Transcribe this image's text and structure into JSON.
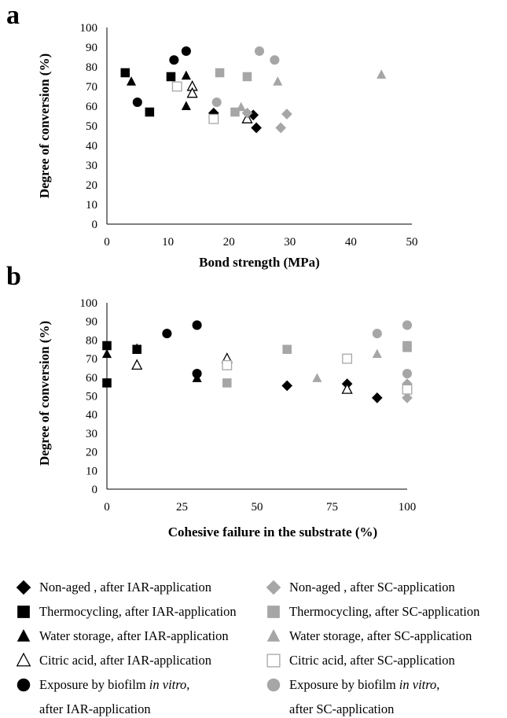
{
  "chart_data": [
    {
      "type": "scatter",
      "panel_label": "a",
      "xlabel": "Bond strength (MPa)",
      "ylabel": "Degree of conversion (%)",
      "xlim": [
        0,
        50
      ],
      "ylim": [
        0,
        100
      ],
      "xticks": [
        "0",
        "10",
        "20",
        "30",
        "40",
        "50"
      ],
      "yticks": [
        "0",
        "10",
        "20",
        "30",
        "40",
        "50",
        "60",
        "70",
        "80",
        "90",
        "100"
      ],
      "grid": false,
      "series": [
        {
          "key": "nonaged_iar",
          "points": [
            [
              17.5,
              56.5
            ],
            [
              24,
              55.5
            ],
            [
              24.5,
              49
            ]
          ]
        },
        {
          "key": "thermo_iar",
          "points": [
            [
              3,
              77
            ],
            [
              7,
              57
            ],
            [
              10.5,
              75
            ]
          ]
        },
        {
          "key": "water_iar",
          "points": [
            [
              4,
              72.5
            ],
            [
              13,
              75.5
            ],
            [
              13,
              60
            ]
          ]
        },
        {
          "key": "citric_iar",
          "points": [
            [
              14,
              70
            ],
            [
              14,
              66.5
            ],
            [
              23,
              53.5
            ]
          ]
        },
        {
          "key": "biofilm_iar",
          "points": [
            [
              5,
              62
            ],
            [
              11,
              83.5
            ],
            [
              13,
              88
            ]
          ]
        },
        {
          "key": "nonaged_sc",
          "points": [
            [
              23,
              56.5
            ],
            [
              28.5,
              49
            ],
            [
              29.5,
              56
            ]
          ]
        },
        {
          "key": "thermo_sc",
          "points": [
            [
              18.5,
              77
            ],
            [
              21,
              57
            ],
            [
              23,
              75
            ]
          ]
        },
        {
          "key": "water_sc",
          "points": [
            [
              22,
              59.5
            ],
            [
              28,
              72.5
            ],
            [
              45,
              76
            ]
          ]
        },
        {
          "key": "citric_sc",
          "points": [
            [
              11.5,
              70
            ],
            [
              17.5,
              53.5
            ]
          ]
        },
        {
          "key": "biofilm_sc",
          "points": [
            [
              18,
              62
            ],
            [
              25,
              88
            ],
            [
              27.5,
              83.5
            ]
          ]
        }
      ]
    },
    {
      "type": "scatter",
      "panel_label": "b",
      "xlabel": "Cohesive failure in the substrate (%)",
      "ylabel": "Degree of conversion (%)",
      "xlim": [
        0,
        100
      ],
      "ylim": [
        0,
        100
      ],
      "xticks": [
        "0",
        "25",
        "50",
        "75",
        "100"
      ],
      "yticks": [
        "0",
        "10",
        "20",
        "30",
        "40",
        "50",
        "60",
        "70",
        "80",
        "90",
        "100"
      ],
      "grid": false,
      "series": [
        {
          "key": "nonaged_iar",
          "points": [
            [
              60,
              55.5
            ],
            [
              80,
              56.5
            ],
            [
              90,
              49
            ]
          ]
        },
        {
          "key": "thermo_iar",
          "points": [
            [
              0,
              77
            ],
            [
              0,
              57
            ],
            [
              10,
              75
            ]
          ]
        },
        {
          "key": "water_iar",
          "points": [
            [
              0,
              72.5
            ],
            [
              10,
              75.5
            ],
            [
              30,
              59.5
            ]
          ]
        },
        {
          "key": "citric_iar",
          "points": [
            [
              10,
              66.5
            ],
            [
              40,
              70
            ],
            [
              80,
              53.5
            ]
          ]
        },
        {
          "key": "biofilm_iar",
          "points": [
            [
              20,
              83.5
            ],
            [
              30,
              88
            ],
            [
              30,
              62
            ]
          ]
        },
        {
          "key": "nonaged_sc",
          "points": [
            [
              100,
              56.5
            ],
            [
              100,
              49
            ]
          ]
        },
        {
          "key": "thermo_sc",
          "points": [
            [
              40,
              57
            ],
            [
              60,
              75
            ],
            [
              100,
              77
            ],
            [
              100,
              76
            ]
          ]
        },
        {
          "key": "water_sc",
          "points": [
            [
              70,
              59.5
            ],
            [
              90,
              72.5
            ]
          ]
        },
        {
          "key": "citric_sc",
          "points": [
            [
              40,
              66.5
            ],
            [
              80,
              70
            ],
            [
              100,
              53.5
            ]
          ]
        },
        {
          "key": "biofilm_sc",
          "points": [
            [
              90,
              83.5
            ],
            [
              100,
              88
            ],
            [
              100,
              62
            ]
          ]
        }
      ]
    }
  ],
  "series_styles": {
    "nonaged_iar": {
      "shape": "diamond",
      "color": "#000000",
      "filled": true
    },
    "thermo_iar": {
      "shape": "square",
      "color": "#000000",
      "filled": true
    },
    "water_iar": {
      "shape": "triangle",
      "color": "#000000",
      "filled": true
    },
    "citric_iar": {
      "shape": "triangle",
      "color": "#000000",
      "filled": false
    },
    "biofilm_iar": {
      "shape": "circle",
      "color": "#000000",
      "filled": true
    },
    "nonaged_sc": {
      "shape": "diamond",
      "color": "#a6a6a6",
      "filled": true
    },
    "thermo_sc": {
      "shape": "square",
      "color": "#a6a6a6",
      "filled": true
    },
    "water_sc": {
      "shape": "triangle",
      "color": "#a6a6a6",
      "filled": true
    },
    "citric_sc": {
      "shape": "square",
      "color": "#a6a6a6",
      "filled": false
    },
    "biofilm_sc": {
      "shape": "circle",
      "color": "#a6a6a6",
      "filled": true
    }
  },
  "legend": {
    "items": [
      {
        "key": "nonaged_iar",
        "text": "Non-aged , after IAR-application"
      },
      {
        "key": "nonaged_sc",
        "text": "Non-aged , after SC-application"
      },
      {
        "key": "thermo_iar",
        "text": "Thermocycling, after IAR-application"
      },
      {
        "key": "thermo_sc",
        "text": "Thermocycling, after SC-application"
      },
      {
        "key": "water_iar",
        "text": "Water storage, after IAR-application"
      },
      {
        "key": "water_sc",
        "text": "Water storage, after SC-application"
      },
      {
        "key": "citric_iar",
        "text": "Citric acid, after IAR-application"
      },
      {
        "key": "citric_sc",
        "text": "Citric acid, after SC-application"
      },
      {
        "key": "biofilm_iar",
        "text_pre": "Exposure by biofilm ",
        "text_italic": "in vitro",
        "text_post": ",",
        "text_line2": "after IAR-application"
      },
      {
        "key": "biofilm_sc",
        "text_pre": "Exposure by biofilm ",
        "text_italic": "in vitro",
        "text_post": ",",
        "text_line2": "after SC-application"
      }
    ]
  }
}
